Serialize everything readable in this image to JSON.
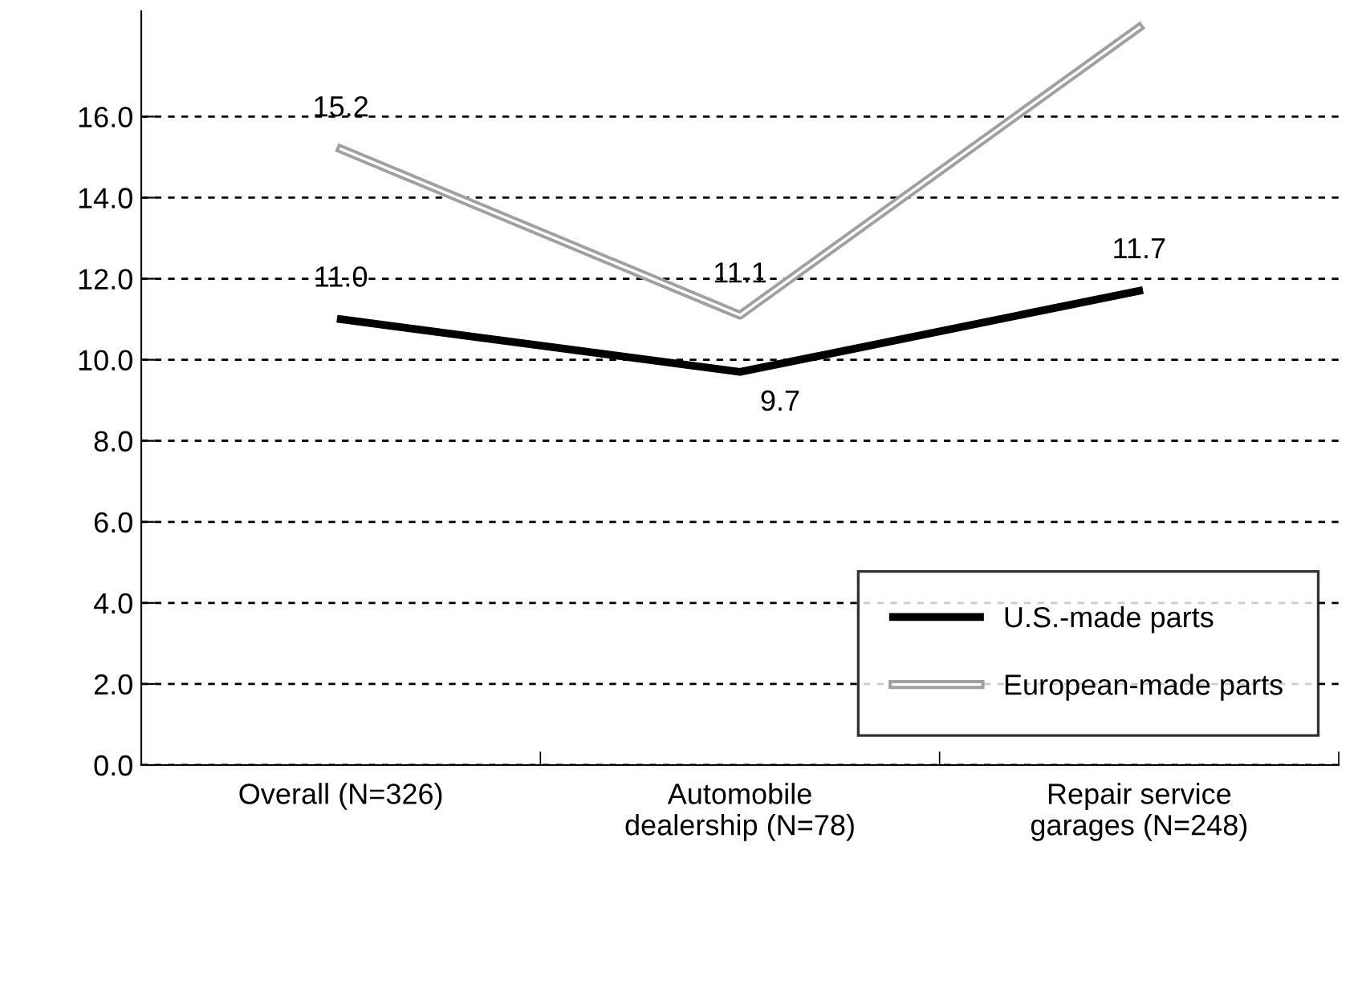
{
  "chart_data": {
    "type": "line",
    "categories": [
      "Overall (N=326)",
      "Automobile\ndealership (N=78)",
      "Repair service\ngarages (N=248)"
    ],
    "series": [
      {
        "name": "U.S.-made parts",
        "color": "#000000",
        "values": [
          11.0,
          9.7,
          11.7
        ],
        "value_labels": [
          "11.0",
          "9.7",
          "11.7"
        ]
      },
      {
        "name": "European-made parts",
        "color": "#a0a0a0",
        "values": [
          15.2,
          11.1,
          18.2
        ],
        "value_labels": [
          "15.2",
          "11.1",
          null
        ]
      }
    ],
    "ylim": [
      0,
      18.6
    ],
    "yticks": [
      {
        "value": 0,
        "label": "0.0"
      },
      {
        "value": 2,
        "label": "2.0"
      },
      {
        "value": 4,
        "label": "4.0"
      },
      {
        "value": 6,
        "label": "6.0"
      },
      {
        "value": 8,
        "label": "8.0"
      },
      {
        "value": 10,
        "label": "10.0"
      },
      {
        "value": 12,
        "label": "12.0"
      },
      {
        "value": 14,
        "label": "14.0"
      },
      {
        "value": 16,
        "label": "16.0"
      }
    ],
    "grid": "y",
    "legend": "bottom right",
    "line_style": "solid"
  }
}
